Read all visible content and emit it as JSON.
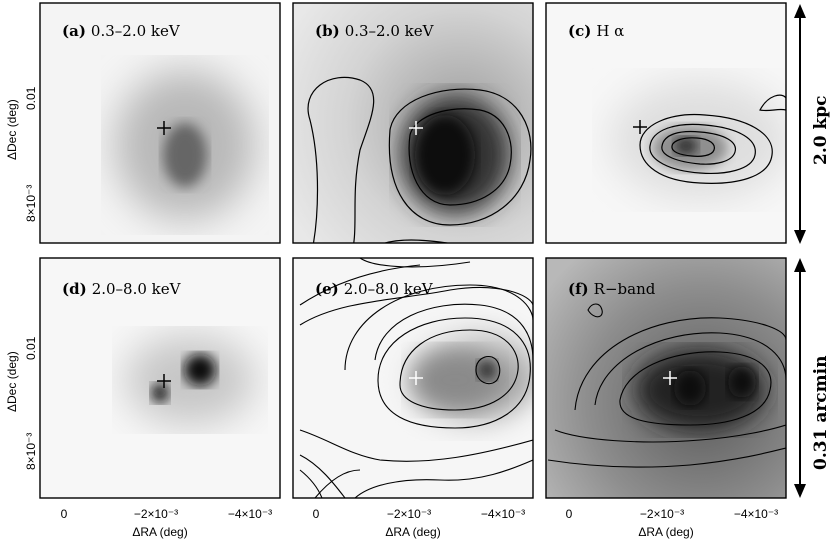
{
  "panels": [
    {
      "id": "a",
      "tag": "(a)",
      "label": "0.3–2.0 keV"
    },
    {
      "id": "b",
      "tag": "(b)",
      "label": "0.3–2.0 keV"
    },
    {
      "id": "c",
      "tag": "(c)",
      "label": "H α"
    },
    {
      "id": "d",
      "tag": "(d)",
      "label": "2.0–8.0 keV"
    },
    {
      "id": "e",
      "tag": "(e)",
      "label": "2.0–8.0 keV"
    },
    {
      "id": "f",
      "tag": "(f)",
      "label": "R−band"
    }
  ],
  "axes": {
    "ylabel": "ΔDec (deg)",
    "xlabel": "ΔRA (deg)",
    "ytick_top": "0.01",
    "ytick_bottom": "8×10⁻³",
    "xticks": [
      "0",
      "−2×10⁻³",
      "−4×10⁻³"
    ]
  },
  "scale_bars": {
    "top": "2.0 kpc",
    "bottom": "0.31 arcmin"
  },
  "colors": {
    "frame": "#000000",
    "marker": "#ffffff"
  }
}
